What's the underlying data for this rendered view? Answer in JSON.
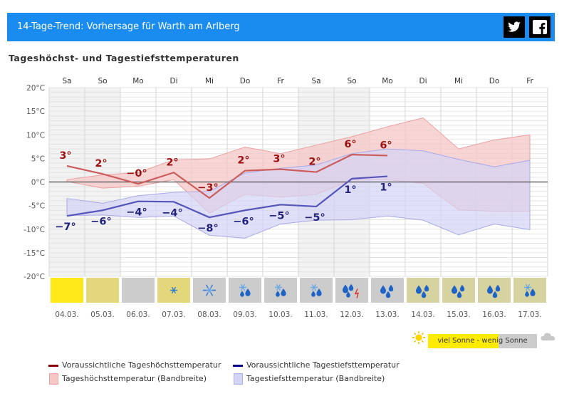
{
  "header": {
    "title": "14-Tage-Trend: Vorhersage für Warth am Arlberg",
    "share": [
      "twitter-icon",
      "facebook-icon"
    ]
  },
  "section_title": "Tageshöchst- und Tagestiefsttemperaturen",
  "chart_data": {
    "type": "line",
    "title": "Tageshöchst- und Tagestiefsttemperaturen",
    "days": [
      "Sa",
      "So",
      "Mo",
      "Di",
      "Mi",
      "Do",
      "Fr",
      "Sa",
      "So",
      "Mo",
      "Di",
      "Mi",
      "Do",
      "Fr"
    ],
    "dates": [
      "04.03.",
      "05.03.",
      "06.03.",
      "07.03.",
      "08.03.",
      "09.03.",
      "10.03.",
      "11.03.",
      "12.03.",
      "13.03.",
      "14.03.",
      "15.03.",
      "16.03.",
      "17.03."
    ],
    "weekend_shaded": [
      true,
      true,
      false,
      false,
      false,
      false,
      false,
      true,
      true,
      false,
      false,
      false,
      false,
      false
    ],
    "ylim": [
      -20,
      20
    ],
    "yticks": [
      20,
      15,
      10,
      5,
      0,
      -5,
      -10,
      -15,
      -20
    ],
    "yunit": "°C",
    "series": [
      {
        "name": "Voraussichtliche Tageshöchsttemperatur",
        "color": "#cd5c5c",
        "values": [
          3.4,
          1.7,
          -0.4,
          2.0,
          -3.4,
          2.4,
          2.7,
          2.1,
          5.8,
          5.6,
          null,
          null,
          null,
          null
        ],
        "labels": [
          "3°",
          "2°",
          "−0°",
          "2°",
          "−3°",
          "2°",
          "3°",
          "2°",
          "6°",
          "6°",
          "",
          "",
          "",
          ""
        ]
      },
      {
        "name": "Voraussichtliche Tagestiefsttemperatur",
        "color": "#5555bb",
        "values": [
          -7.2,
          -6.0,
          -4.1,
          -4.2,
          -7.5,
          -6.0,
          -4.8,
          -5.2,
          0.7,
          1.2,
          null,
          null,
          null,
          null
        ],
        "labels": [
          "−7°",
          "−6°",
          "−4°",
          "−4°",
          "−8°",
          "−6°",
          "−5°",
          "−5°",
          "1°",
          "1°",
          "",
          "",
          "",
          ""
        ]
      }
    ],
    "bands": [
      {
        "name": "Tageshöchsttemperatur (Bandbreite)",
        "color": "#f6c7c7",
        "upper": [
          0.5,
          1.5,
          2.0,
          4.7,
          4.9,
          7.4,
          6.0,
          7.8,
          9.6,
          11.7,
          13.6,
          7.0,
          8.9,
          10.0
        ],
        "lower": [
          0.1,
          -1.3,
          -0.9,
          0.5,
          -6.6,
          -2.6,
          -3.2,
          -2.6,
          0.4,
          0.5,
          -0.3,
          -5.9,
          -6.2,
          -6.2
        ]
      },
      {
        "name": "Tagestiefsttemperatur (Bandbreite)",
        "color": "#d3d3f5",
        "upper": [
          -3.5,
          -4.5,
          -2.9,
          -2.2,
          -2.0,
          1.9,
          2.9,
          3.6,
          6.0,
          7.0,
          6.6,
          4.8,
          3.2,
          4.6
        ],
        "lower": [
          -7.1,
          -7.0,
          -7.5,
          -7.2,
          -11.3,
          -11.9,
          -8.9,
          -8.1,
          -8.0,
          -7.2,
          -8.1,
          -11.2,
          -8.9,
          -10.1
        ]
      }
    ],
    "weather_tiles": [
      {
        "bg": "#ffe81a",
        "icon": "sunny"
      },
      {
        "bg": "#e4d67a",
        "icon": "sun-cloud"
      },
      {
        "bg": "#cccccc",
        "icon": "cloudy"
      },
      {
        "bg": "#e4d67a",
        "icon": "snowflake-small-icon"
      },
      {
        "bg": "#cccccc",
        "icon": "snowflake-large-icon"
      },
      {
        "bg": "#cccccc",
        "icon": "snow-rain-icon"
      },
      {
        "bg": "#cccccc",
        "icon": "snow-rain-icon"
      },
      {
        "bg": "#cccccc",
        "icon": "snow-rain-icon"
      },
      {
        "bg": "#cccccc",
        "icon": "rain-thunder-icon"
      },
      {
        "bg": "#cccccc",
        "icon": "rain-drops-icon"
      },
      {
        "bg": "#d7d3a0",
        "icon": "rain-drops-icon"
      },
      {
        "bg": "#d7d3a0",
        "icon": "rain-drops-icon"
      },
      {
        "bg": "#d7d3a0",
        "icon": "rain-drops-icon"
      },
      {
        "bg": "#d7d3a0",
        "icon": "snow-rain-icon"
      }
    ]
  },
  "sun_legend": {
    "text": "viel Sonne - wenig Sonne",
    "left_icon": "sun-icon",
    "right_icon": "cloud-icon"
  },
  "legend": [
    {
      "type": "line",
      "color": "#8b0000",
      "label": "Voraussichtliche Tageshöchsttemperatur"
    },
    {
      "type": "line",
      "color": "#000080",
      "label": "Voraussichtliche Tagestiefsttemperatur"
    },
    {
      "type": "band",
      "color": "#f6c7c7",
      "label": "Tageshöchsttemperatur (Bandbreite)"
    },
    {
      "type": "band",
      "color": "#d3d3f5",
      "label": "Tagestiefsttemperatur (Bandbreite)"
    }
  ]
}
